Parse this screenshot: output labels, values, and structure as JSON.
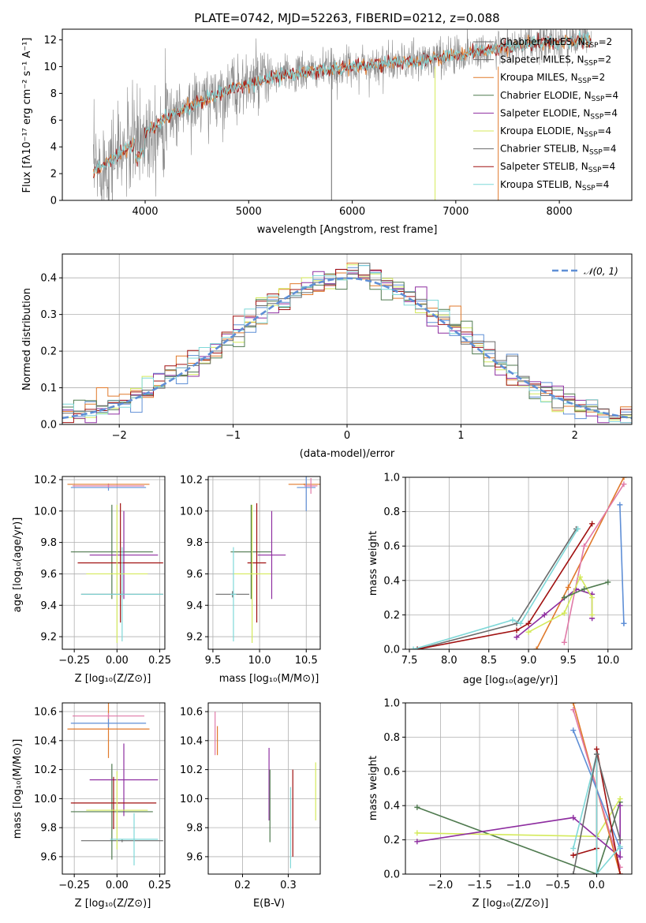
{
  "colors": {
    "blue": "#5f8fd6",
    "orange": "#e07a2c",
    "purple": "#8e2ea0",
    "dkgreen": "#4f7a4f",
    "lime": "#d4ea5b",
    "gray": "#6b6b6b",
    "red": "#a01010",
    "cyan": "#7fd8d8",
    "pink": "#e07aa8",
    "specgray": "#8c8c8c",
    "grid": "#b0b0b0"
  },
  "chart_data": [
    {
      "id": "spectrum",
      "type": "line",
      "title": "PLATE=0742, MJD=52263, FIBERID=0212, z=0.088",
      "xlabel": "wavelength [Angstrom, rest frame]",
      "ylabel": "Flux [fλ10⁻¹⁷ erg cm⁻² s⁻¹ A⁻¹]",
      "xlim": [
        3200,
        8700
      ],
      "ylim": [
        0,
        12.8
      ],
      "xticks": [
        "4000",
        "5000",
        "6000",
        "7000",
        "8000"
      ],
      "yticks": [
        "0",
        "2",
        "4",
        "6",
        "8",
        "10",
        "12"
      ],
      "grid": false,
      "legend_position": "top-right",
      "legend": [
        "Chabrier MILES, N<sub>SSP</sub>=2",
        "Salpeter MILES, N<sub>SSP</sub>=2",
        "Kroupa MILES, N<sub>SSP</sub>=2",
        "Chabrier ELODIE, N<sub>SSP</sub>=4",
        "Salpeter ELODIE, N<sub>SSP</sub>=4",
        "Kroupa ELODIE, N<sub>SSP</sub>=4",
        "Chabrier STELIB, N<sub>SSP</sub>=4",
        "Salpeter STELIB, N<sub>SSP</sub>=4",
        "Kroupa STELIB, N<sub>SSP</sub>=4"
      ],
      "legend_colors": [
        "gray",
        "gray",
        "orange",
        "dkgreen",
        "purple",
        "lime",
        "gray",
        "red",
        "cyan"
      ],
      "continuum": {
        "x": [
          3500,
          3700,
          3900,
          4100,
          4300,
          4500,
          4700,
          4900,
          5100,
          5300,
          5500,
          5700,
          5900,
          6100,
          6300,
          6500,
          6700,
          6900,
          7100,
          7300,
          7500,
          7700,
          7900,
          8100,
          8300
        ],
        "y": [
          2.1,
          3.2,
          4.3,
          5.6,
          6.6,
          7.3,
          7.9,
          8.5,
          8.9,
          9.3,
          9.5,
          9.7,
          9.9,
          10.1,
          10.2,
          10.3,
          10.5,
          10.8,
          11.0,
          11.3,
          11.4,
          11.6,
          11.8,
          11.9,
          12.0
        ]
      },
      "observed_noise_sigma": 1.2
    },
    {
      "id": "residuals",
      "type": "line",
      "xlabel": "(data-model)/error",
      "ylabel": "Normed distribution",
      "xlim": [
        -2.5,
        2.5
      ],
      "ylim": [
        0,
        0.465
      ],
      "xticks": [
        "−2",
        "−1",
        "0",
        "1",
        "2"
      ],
      "yticks": [
        "0.0",
        "0.1",
        "0.2",
        "0.3",
        "0.4"
      ],
      "grid": true,
      "legend_position": "top-right",
      "legend": [
        "𝒩(0, 1)"
      ],
      "bin_width": 0.1,
      "series_colors": [
        "blue",
        "orange",
        "lime",
        "dkgreen",
        "purple",
        "red",
        "cyan",
        "gray"
      ]
    },
    {
      "id": "age-vs-Z",
      "type": "scatter",
      "xlabel": "Z [log₁₀(Z/Z⊙)]",
      "ylabel": "age  [log₁₀(age/yr)]",
      "xlim": [
        -0.32,
        0.28
      ],
      "ylim": [
        9.12,
        10.22
      ],
      "xticks": [
        "−0.25",
        "0.00",
        "0.25"
      ],
      "yticks": [
        "9.2",
        "9.4",
        "9.6",
        "9.8",
        "10.0",
        "10.2"
      ],
      "grid": true,
      "crosses": [
        {
          "x": -0.05,
          "xerr": 0.24,
          "y": 10.17,
          "yerr": 0.005,
          "color": "orange"
        },
        {
          "x": -0.05,
          "xerr": 0.22,
          "y": 10.15,
          "yerr": 0.02,
          "color": "blue"
        },
        {
          "x": -0.05,
          "xerr": 0.21,
          "y": 10.16,
          "yerr": 0.01,
          "color": "pink"
        },
        {
          "x": 0.03,
          "xerr": 0.24,
          "y": 9.47,
          "yerr": 0.02,
          "color": "gray"
        },
        {
          "x": -0.03,
          "xerr": 0.24,
          "y": 9.74,
          "yerr": 0.3,
          "color": "dkgreen"
        },
        {
          "x": 0.04,
          "xerr": 0.2,
          "y": 9.72,
          "yerr": 0.28,
          "color": "purple"
        },
        {
          "x": 0.02,
          "xerr": 0.25,
          "y": 9.67,
          "yerr": 0.38,
          "color": "red"
        },
        {
          "x": 0.0,
          "xerr": 0.18,
          "y": 9.6,
          "yerr": 0.44,
          "color": "lime"
        },
        {
          "x": 0.03,
          "xerr": 0.24,
          "y": 9.47,
          "yerr": 0.3,
          "color": "cyan"
        }
      ]
    },
    {
      "id": "age-vs-mass",
      "type": "scatter",
      "xlabel": "mass [log₁₀(M/M⊙)]",
      "ylabel": "",
      "xlim": [
        9.45,
        10.65
      ],
      "ylim": [
        9.12,
        10.22
      ],
      "xticks": [
        "9.5",
        "10.0",
        "10.5"
      ],
      "yticks": [
        "9.2",
        "9.4",
        "9.6",
        "9.8",
        "10.0",
        "10.2"
      ],
      "grid": true,
      "crosses": [
        {
          "x": 10.48,
          "xerr": 0.17,
          "y": 10.17,
          "yerr": 0.005,
          "color": "orange"
        },
        {
          "x": 10.5,
          "xerr": 0.1,
          "y": 10.15,
          "yerr": 0.15,
          "color": "blue"
        },
        {
          "x": 10.55,
          "xerr": 0.07,
          "y": 10.16,
          "yerr": 0.05,
          "color": "pink"
        },
        {
          "x": 9.71,
          "xerr": 0.18,
          "y": 9.47,
          "yerr": 0.02,
          "color": "gray"
        },
        {
          "x": 9.91,
          "xerr": 0.22,
          "y": 9.74,
          "yerr": 0.3,
          "color": "dkgreen"
        },
        {
          "x": 10.13,
          "xerr": 0.15,
          "y": 9.72,
          "yerr": 0.28,
          "color": "purple"
        },
        {
          "x": 9.97,
          "xerr": 0.1,
          "y": 9.67,
          "yerr": 0.38,
          "color": "red"
        },
        {
          "x": 9.92,
          "xerr": 0.2,
          "y": 9.6,
          "yerr": 0.44,
          "color": "lime"
        },
        {
          "x": 9.72,
          "xerr": 0.03,
          "y": 9.47,
          "yerr": 0.3,
          "color": "cyan"
        }
      ]
    },
    {
      "id": "massweight-vs-age",
      "type": "line",
      "xlabel": "age  [log₁₀(age/yr)]",
      "ylabel": "mass weight",
      "xlim": [
        7.45,
        10.3
      ],
      "ylim": [
        0,
        1.0
      ],
      "xticks": [
        "7.5",
        "8.0",
        "8.5",
        "9.0",
        "9.5",
        "10.0"
      ],
      "yticks": [
        "0.0",
        "0.2",
        "0.4",
        "0.6",
        "0.8",
        "1.0"
      ],
      "grid": true,
      "series": [
        {
          "color": "gray",
          "x": [
            7.6,
            8.85,
            9.6
          ],
          "y": [
            0.0,
            0.15,
            0.7
          ]
        },
        {
          "color": "red",
          "x": [
            7.6,
            8.85,
            9.0,
            9.8
          ],
          "y": [
            0.0,
            0.11,
            0.15,
            0.73
          ]
        },
        {
          "color": "orange",
          "x": [
            9.1,
            9.5,
            10.2
          ],
          "y": [
            0.0,
            0.36,
            1.0
          ]
        },
        {
          "color": "pink",
          "x": [
            9.45,
            9.7,
            10.2
          ],
          "y": [
            0.04,
            0.6,
            0.96
          ]
        },
        {
          "color": "blue",
          "x": [
            10.15,
            10.2,
            10.2
          ],
          "y": [
            0.84,
            0.15,
            0.15
          ]
        },
        {
          "color": "purple",
          "x": [
            8.85,
            9.2,
            9.6,
            9.8,
            9.8
          ],
          "y": [
            0.07,
            0.2,
            0.35,
            0.32,
            0.18
          ]
        },
        {
          "color": "lime",
          "x": [
            9.0,
            9.45,
            9.65,
            9.8,
            9.8
          ],
          "y": [
            0.1,
            0.21,
            0.42,
            0.3,
            0.2
          ]
        },
        {
          "color": "dkgreen",
          "x": [
            9.45,
            9.7,
            10.0
          ],
          "y": [
            0.3,
            0.35,
            0.39
          ]
        },
        {
          "color": "cyan",
          "x": [
            7.55,
            8.8,
            8.9,
            9.62
          ],
          "y": [
            0.0,
            0.17,
            0.15,
            0.7
          ]
        }
      ]
    },
    {
      "id": "mass-vs-Z",
      "type": "scatter",
      "xlabel": "Z [log₁₀(Z/Z⊙)]",
      "ylabel": "mass [log₁₀(M/M⊙)]",
      "xlim": [
        -0.32,
        0.28
      ],
      "ylim": [
        9.48,
        10.66
      ],
      "xticks": [
        "−0.25",
        "0.00",
        "0.25"
      ],
      "yticks": [
        "9.6",
        "9.8",
        "10.0",
        "10.2",
        "10.4",
        "10.6"
      ],
      "grid": true,
      "crosses": [
        {
          "x": -0.05,
          "xerr": 0.24,
          "y": 10.48,
          "yerr": 0.2,
          "color": "orange"
        },
        {
          "x": -0.05,
          "xerr": 0.22,
          "y": 10.52,
          "yerr": 0.03,
          "color": "blue"
        },
        {
          "x": -0.05,
          "xerr": 0.21,
          "y": 10.57,
          "yerr": 0.02,
          "color": "pink"
        },
        {
          "x": 0.03,
          "xerr": 0.24,
          "y": 9.71,
          "yerr": 0.01,
          "color": "gray"
        },
        {
          "x": -0.03,
          "xerr": 0.24,
          "y": 9.91,
          "yerr": 0.33,
          "color": "dkgreen"
        },
        {
          "x": 0.04,
          "xerr": 0.2,
          "y": 10.13,
          "yerr": 0.25,
          "color": "purple"
        },
        {
          "x": -0.02,
          "xerr": 0.25,
          "y": 9.97,
          "yerr": 0.18,
          "color": "red"
        },
        {
          "x": 0.0,
          "xerr": 0.18,
          "y": 9.92,
          "yerr": 0.27,
          "color": "lime"
        },
        {
          "x": 0.1,
          "xerr": 0.14,
          "y": 9.72,
          "yerr": 0.18,
          "color": "cyan"
        }
      ]
    },
    {
      "id": "mass-vs-ebv",
      "type": "scatter",
      "xlabel": "E(B-V)",
      "ylabel": "",
      "xlim": [
        0.125,
        0.37
      ],
      "ylim": [
        9.48,
        10.66
      ],
      "xticks": [
        "0.2",
        "0.3"
      ],
      "yticks": [
        "9.6",
        "9.8",
        "10.0",
        "10.2",
        "10.4",
        "10.6"
      ],
      "grid": true,
      "crosses": [
        {
          "x": 0.14,
          "xerr": 0.0,
          "y": 10.45,
          "yerr": 0.15,
          "color": "pink"
        },
        {
          "x": 0.145,
          "xerr": 0.0,
          "y": 10.4,
          "yerr": 0.1,
          "color": "orange"
        },
        {
          "x": 0.258,
          "xerr": 0.0,
          "y": 10.1,
          "yerr": 0.25,
          "color": "purple"
        },
        {
          "x": 0.26,
          "xerr": 0.0,
          "y": 9.95,
          "yerr": 0.25,
          "color": "dkgreen"
        },
        {
          "x": 0.31,
          "xerr": 0.0,
          "y": 9.9,
          "yerr": 0.3,
          "color": "red"
        },
        {
          "x": 0.305,
          "xerr": 0.0,
          "y": 9.8,
          "yerr": 0.28,
          "color": "cyan"
        },
        {
          "x": 0.36,
          "xerr": 0.0,
          "y": 10.05,
          "yerr": 0.2,
          "color": "lime"
        }
      ]
    },
    {
      "id": "massweight-vs-Z",
      "type": "line",
      "xlabel": "Z [log₁₀(Z/Z⊙)]",
      "ylabel": "mass weight",
      "xlim": [
        -2.45,
        0.45
      ],
      "ylim": [
        0,
        1.0
      ],
      "xticks": [
        "−2.0",
        "−1.5",
        "−1.0",
        "−0.5",
        "0.0"
      ],
      "yticks": [
        "0.0",
        "0.2",
        "0.4",
        "0.6",
        "0.8",
        "1.0"
      ],
      "grid": true,
      "series": [
        {
          "color": "dkgreen",
          "x": [
            -2.3,
            0.0,
            0.3
          ],
          "y": [
            0.39,
            0.0,
            0.42
          ]
        },
        {
          "color": "lime",
          "x": [
            -2.3,
            0.0,
            0.3
          ],
          "y": [
            0.24,
            0.22,
            0.44
          ]
        },
        {
          "color": "purple",
          "x": [
            -2.3,
            -0.3,
            0.3,
            0.3
          ],
          "y": [
            0.19,
            0.33,
            0.1,
            0.4
          ]
        },
        {
          "color": "orange",
          "x": [
            -0.3,
            0.3
          ],
          "y": [
            1.0,
            0.0
          ]
        },
        {
          "color": "pink",
          "x": [
            -0.3,
            0.3
          ],
          "y": [
            0.96,
            0.04
          ]
        },
        {
          "color": "blue",
          "x": [
            -0.3,
            0.3
          ],
          "y": [
            0.84,
            0.15
          ]
        },
        {
          "color": "red",
          "x": [
            -0.3,
            0.0,
            0.0,
            0.3
          ],
          "y": [
            0.11,
            0.15,
            0.73,
            0.0
          ]
        },
        {
          "color": "cyan",
          "x": [
            -0.3,
            0.0,
            0.0,
            0.3
          ],
          "y": [
            0.15,
            0.7,
            0.0,
            0.16
          ]
        },
        {
          "color": "gray",
          "x": [
            -0.3,
            0.0,
            0.3
          ],
          "y": [
            0.0,
            0.7,
            0.2
          ]
        }
      ]
    }
  ]
}
